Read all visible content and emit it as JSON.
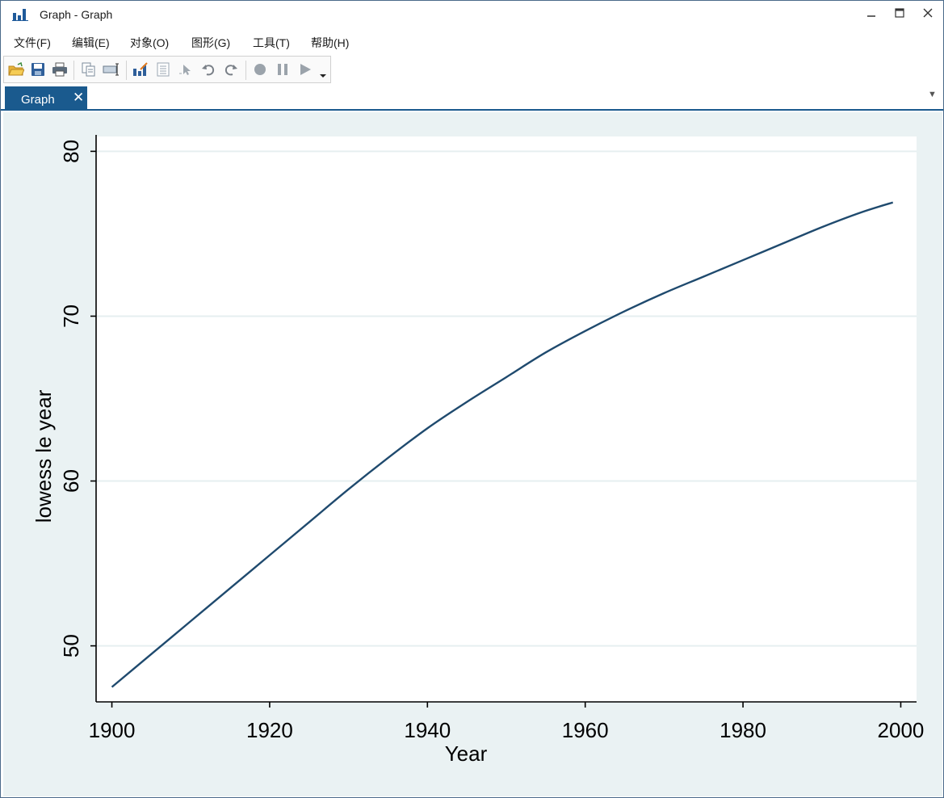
{
  "window": {
    "title": "Graph - Graph",
    "icon": "bar-chart-icon",
    "controls": [
      "minimize-icon",
      "maximize-icon",
      "close-icon"
    ]
  },
  "menu": {
    "file": "文件(F)",
    "edit": "编辑(E)",
    "object": "对象(O)",
    "graph": "图形(G)",
    "tools": "工具(T)",
    "help": "帮助(H)"
  },
  "toolbar": {
    "icons": [
      "open-folder-icon",
      "save-icon",
      "print-icon",
      "copy-icon",
      "rename-icon",
      "graph-editor-icon",
      "data-editor-icon",
      "pointer-icon",
      "undo-icon",
      "redo-icon",
      "record-icon",
      "pause-icon",
      "play-icon",
      "dropdown-icon"
    ]
  },
  "tabs": [
    {
      "label": "Graph",
      "close": "✕"
    }
  ],
  "tab_dropdown": "▼",
  "colors": {
    "line": "#1f4a6e",
    "graph_region": "#eaf2f3",
    "plot_region": "#ffffff",
    "gridline": "#e6eff0",
    "tab_active": "#1a5a8e"
  },
  "chart_data": {
    "type": "line",
    "title": "",
    "xlabel": "Year",
    "ylabel": "lowess le year",
    "xlim": [
      1898,
      2002
    ],
    "ylim": [
      46.6,
      80.9
    ],
    "xticks": [
      1900,
      1920,
      1940,
      1960,
      1980,
      2000
    ],
    "yticks": [
      50,
      60,
      70,
      80
    ],
    "grid": "horizontal",
    "series": [
      {
        "x": [
          1900,
          1905,
          1910,
          1915,
          1920,
          1925,
          1930,
          1935,
          1940,
          1945,
          1950,
          1955,
          1960,
          1965,
          1970,
          1975,
          1980,
          1985,
          1990,
          1995,
          1999
        ],
        "y": [
          47.5,
          49.5,
          51.5,
          53.5,
          55.5,
          57.5,
          59.5,
          61.4,
          63.2,
          64.8,
          66.3,
          67.8,
          69.1,
          70.3,
          71.4,
          72.4,
          73.4,
          74.4,
          75.4,
          76.3,
          76.9
        ]
      }
    ]
  }
}
